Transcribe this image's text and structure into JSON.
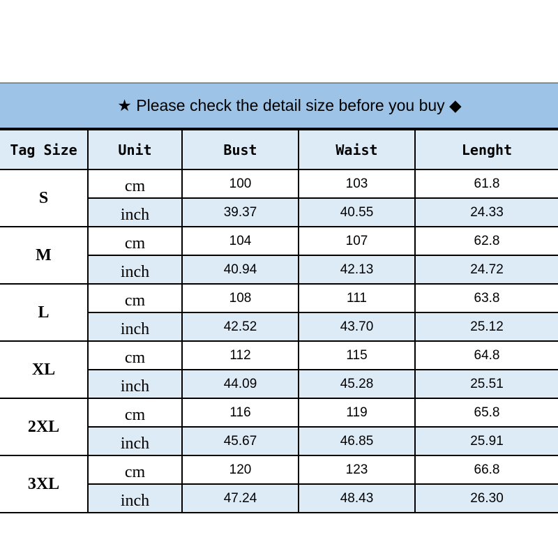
{
  "banner": {
    "text": "★ Please check the detail size before you buy ◆"
  },
  "colors": {
    "banner": "#9dc3e6",
    "shaded_row": "#ddebf7",
    "border": "#000000"
  },
  "headers": [
    "Tag Size",
    "Unit",
    "Bust",
    "Waist",
    "Lenght"
  ],
  "sizes": [
    {
      "tag": "S",
      "cm": {
        "unit": "cm",
        "bust": "100",
        "waist": "103",
        "length": "61.8"
      },
      "inch": {
        "unit": "inch",
        "bust": "39.37",
        "waist": "40.55",
        "length": "24.33"
      }
    },
    {
      "tag": "M",
      "cm": {
        "unit": "cm",
        "bust": "104",
        "waist": "107",
        "length": "62.8"
      },
      "inch": {
        "unit": "inch",
        "bust": "40.94",
        "waist": "42.13",
        "length": "24.72"
      }
    },
    {
      "tag": "L",
      "cm": {
        "unit": "cm",
        "bust": "108",
        "waist": "111",
        "length": "63.8"
      },
      "inch": {
        "unit": "inch",
        "bust": "42.52",
        "waist": "43.70",
        "length": "25.12"
      }
    },
    {
      "tag": "XL",
      "cm": {
        "unit": "cm",
        "bust": "112",
        "waist": "115",
        "length": "64.8"
      },
      "inch": {
        "unit": "inch",
        "bust": "44.09",
        "waist": "45.28",
        "length": "25.51"
      }
    },
    {
      "tag": "2XL",
      "cm": {
        "unit": "cm",
        "bust": "116",
        "waist": "119",
        "length": "65.8"
      },
      "inch": {
        "unit": "inch",
        "bust": "45.67",
        "waist": "46.85",
        "length": "25.91"
      }
    },
    {
      "tag": "3XL",
      "cm": {
        "unit": "cm",
        "bust": "120",
        "waist": "123",
        "length": "66.8"
      },
      "inch": {
        "unit": "inch",
        "bust": "47.24",
        "waist": "48.43",
        "length": "26.30"
      }
    }
  ]
}
